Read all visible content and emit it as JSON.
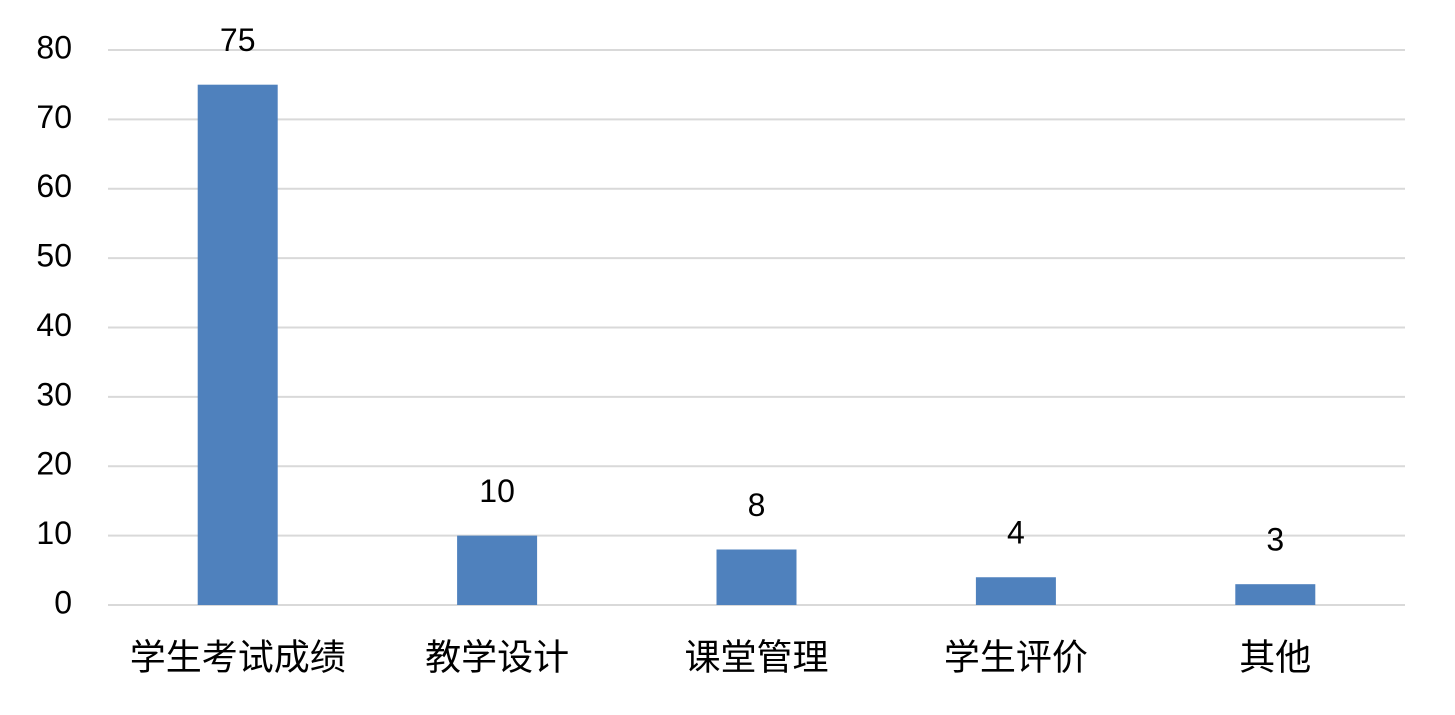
{
  "chart_data": {
    "type": "bar",
    "categories": [
      "学生考试成绩",
      "教学设计",
      "课堂管理",
      "学生评价",
      "其他"
    ],
    "values": [
      75,
      10,
      8,
      4,
      3
    ],
    "color": "#4f81bd",
    "ylim": [
      0,
      80
    ],
    "yticks": [
      0,
      10,
      20,
      30,
      40,
      50,
      60,
      70,
      80
    ],
    "grid": true
  }
}
